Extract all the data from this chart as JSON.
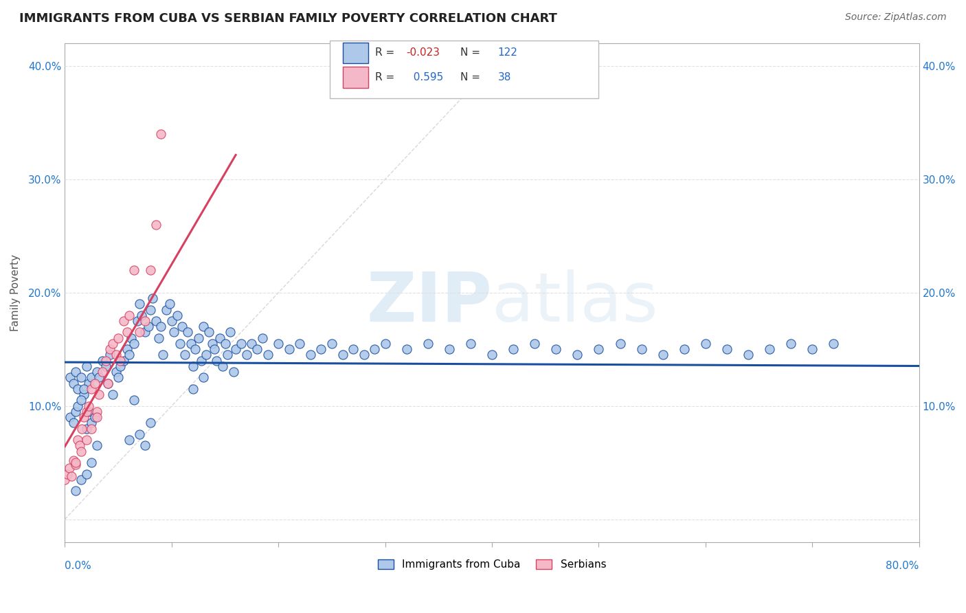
{
  "title": "IMMIGRANTS FROM CUBA VS SERBIAN FAMILY POVERTY CORRELATION CHART",
  "source": "Source: ZipAtlas.com",
  "ylabel": "Family Poverty",
  "legend_label1": "Immigrants from Cuba",
  "legend_label2": "Serbians",
  "R1": -0.023,
  "N1": 122,
  "R2": 0.595,
  "N2": 38,
  "watermark": "ZIPatlas",
  "xlim": [
    0.0,
    0.8
  ],
  "ylim": [
    -0.02,
    0.42
  ],
  "yticks": [
    0.0,
    0.1,
    0.2,
    0.3,
    0.4
  ],
  "ytick_labels": [
    "",
    "10.0%",
    "20.0%",
    "30.0%",
    "40.0%"
  ],
  "color_cuba": "#adc8e8",
  "color_serbia": "#f5b8c8",
  "color_cuba_line": "#1a4fa0",
  "color_serbia_line": "#d84060",
  "color_diag": "#c8c8c8",
  "background": "#ffffff",
  "cuba_x": [
    0.005,
    0.008,
    0.01,
    0.012,
    0.015,
    0.018,
    0.02,
    0.022,
    0.025,
    0.005,
    0.008,
    0.01,
    0.012,
    0.015,
    0.018,
    0.02,
    0.022,
    0.025,
    0.028,
    0.03,
    0.032,
    0.035,
    0.038,
    0.04,
    0.042,
    0.045,
    0.048,
    0.05,
    0.052,
    0.055,
    0.058,
    0.06,
    0.062,
    0.065,
    0.068,
    0.07,
    0.072,
    0.075,
    0.078,
    0.08,
    0.082,
    0.085,
    0.088,
    0.09,
    0.092,
    0.095,
    0.098,
    0.1,
    0.102,
    0.105,
    0.108,
    0.11,
    0.112,
    0.115,
    0.118,
    0.12,
    0.122,
    0.125,
    0.128,
    0.13,
    0.132,
    0.135,
    0.138,
    0.14,
    0.142,
    0.145,
    0.148,
    0.15,
    0.152,
    0.155,
    0.158,
    0.16,
    0.165,
    0.17,
    0.175,
    0.18,
    0.185,
    0.19,
    0.2,
    0.21,
    0.22,
    0.23,
    0.24,
    0.25,
    0.26,
    0.27,
    0.28,
    0.29,
    0.3,
    0.32,
    0.34,
    0.36,
    0.38,
    0.4,
    0.42,
    0.44,
    0.46,
    0.48,
    0.5,
    0.52,
    0.54,
    0.56,
    0.58,
    0.6,
    0.62,
    0.64,
    0.66,
    0.68,
    0.7,
    0.72,
    0.01,
    0.015,
    0.02,
    0.025,
    0.03,
    0.06,
    0.065,
    0.07,
    0.075,
    0.08,
    0.12,
    0.13
  ],
  "cuba_y": [
    0.125,
    0.12,
    0.13,
    0.115,
    0.125,
    0.11,
    0.135,
    0.12,
    0.125,
    0.09,
    0.085,
    0.095,
    0.1,
    0.105,
    0.115,
    0.08,
    0.095,
    0.085,
    0.09,
    0.13,
    0.125,
    0.14,
    0.135,
    0.12,
    0.145,
    0.11,
    0.13,
    0.125,
    0.135,
    0.14,
    0.15,
    0.145,
    0.16,
    0.155,
    0.175,
    0.19,
    0.18,
    0.165,
    0.17,
    0.185,
    0.195,
    0.175,
    0.16,
    0.17,
    0.145,
    0.185,
    0.19,
    0.175,
    0.165,
    0.18,
    0.155,
    0.17,
    0.145,
    0.165,
    0.155,
    0.135,
    0.15,
    0.16,
    0.14,
    0.17,
    0.145,
    0.165,
    0.155,
    0.15,
    0.14,
    0.16,
    0.135,
    0.155,
    0.145,
    0.165,
    0.13,
    0.15,
    0.155,
    0.145,
    0.155,
    0.15,
    0.16,
    0.145,
    0.155,
    0.15,
    0.155,
    0.145,
    0.15,
    0.155,
    0.145,
    0.15,
    0.145,
    0.15,
    0.155,
    0.15,
    0.155,
    0.15,
    0.155,
    0.145,
    0.15,
    0.155,
    0.15,
    0.145,
    0.15,
    0.155,
    0.15,
    0.145,
    0.15,
    0.155,
    0.15,
    0.145,
    0.15,
    0.155,
    0.15,
    0.155,
    0.025,
    0.035,
    0.04,
    0.05,
    0.065,
    0.07,
    0.105,
    0.075,
    0.065,
    0.085,
    0.115,
    0.125
  ],
  "serbia_x": [
    0.0,
    0.002,
    0.004,
    0.006,
    0.008,
    0.01,
    0.012,
    0.014,
    0.016,
    0.018,
    0.02,
    0.022,
    0.025,
    0.028,
    0.03,
    0.032,
    0.035,
    0.038,
    0.04,
    0.042,
    0.045,
    0.048,
    0.05,
    0.052,
    0.055,
    0.058,
    0.06,
    0.065,
    0.07,
    0.075,
    0.08,
    0.085,
    0.09,
    0.01,
    0.015,
    0.02,
    0.025,
    0.03
  ],
  "serbia_y": [
    0.035,
    0.04,
    0.045,
    0.038,
    0.052,
    0.048,
    0.07,
    0.065,
    0.08,
    0.09,
    0.095,
    0.1,
    0.115,
    0.12,
    0.095,
    0.11,
    0.13,
    0.14,
    0.12,
    0.15,
    0.155,
    0.145,
    0.16,
    0.14,
    0.175,
    0.165,
    0.18,
    0.22,
    0.165,
    0.175,
    0.22,
    0.26,
    0.34,
    0.05,
    0.06,
    0.07,
    0.08,
    0.09
  ],
  "grid_color": "#e0e0e0",
  "xtick_positions": [
    0.0,
    0.1,
    0.2,
    0.3,
    0.4,
    0.5,
    0.6,
    0.7,
    0.8
  ]
}
